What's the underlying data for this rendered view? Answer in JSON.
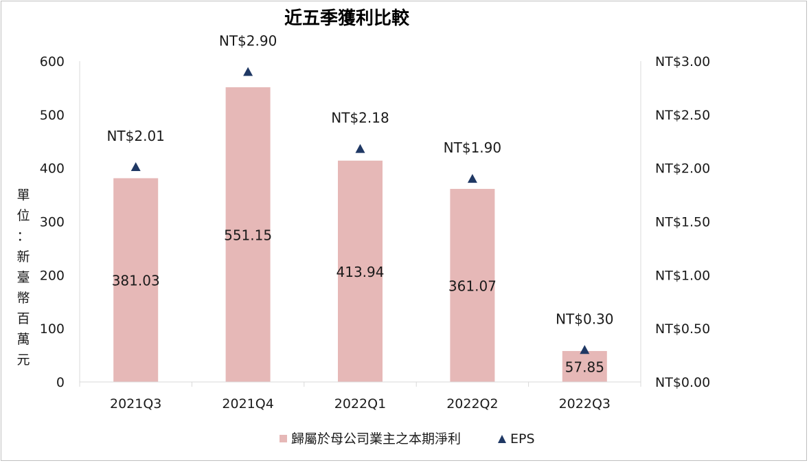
{
  "chart_data": {
    "type": "bar",
    "title": "近五季獲利比較",
    "categories": [
      "2021Q3",
      "2021Q4",
      "2022Q1",
      "2022Q2",
      "2022Q3"
    ],
    "series": [
      {
        "name": "歸屬於母公司業主之本期淨利",
        "kind": "bar",
        "axis": "left",
        "values": [
          381.03,
          551.15,
          413.94,
          361.07,
          57.85
        ],
        "labels": [
          "381.03",
          "551.15",
          "413.94",
          "361.07",
          "57.85"
        ],
        "color": "#e6b8b7"
      },
      {
        "name": "EPS",
        "kind": "marker",
        "marker": "triangle",
        "axis": "right",
        "values": [
          2.01,
          2.9,
          2.18,
          1.9,
          0.3
        ],
        "labels": [
          "NT$2.01",
          "NT$2.90",
          "NT$2.18",
          "NT$1.90",
          "NT$0.30"
        ],
        "color": "#1f3864"
      }
    ],
    "ylabel": "單位：新臺幣百萬元",
    "ylabel_chars": [
      "單",
      "位",
      "：",
      "新",
      "臺",
      "幣",
      "百",
      "萬",
      "元"
    ],
    "ylim": [
      0,
      600
    ],
    "yticks": [
      "0",
      "100",
      "200",
      "300",
      "400",
      "500",
      "600"
    ],
    "y2lim": [
      0,
      3.0
    ],
    "y2ticks": [
      "NT$0.00",
      "NT$0.50",
      "NT$1.00",
      "NT$1.50",
      "NT$2.00",
      "NT$2.50",
      "NT$3.00"
    ],
    "grid": false,
    "legend": "bottom-center"
  }
}
